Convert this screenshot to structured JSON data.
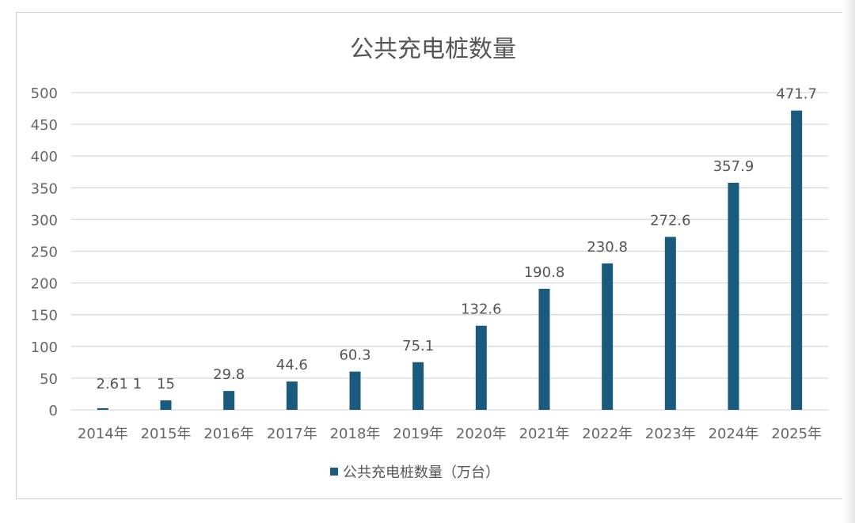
{
  "chart_data": {
    "type": "bar",
    "title": "公共充电桩数量",
    "categories": [
      "2014年",
      "2015年",
      "2016年",
      "2017年",
      "2018年",
      "2019年",
      "2020年",
      "2021年",
      "2022年",
      "2023年",
      "2024年",
      "2025年"
    ],
    "series": [
      {
        "name": "公共充电桩数量（万台）",
        "values": [
          2.6,
          15,
          29.8,
          44.6,
          60.3,
          75.1,
          132.6,
          190.8,
          230.8,
          272.6,
          357.9,
          471.7
        ],
        "labels": [
          "2.6",
          "15",
          "29.8",
          "44.6",
          "60.3",
          "75.1",
          "132.6",
          "190.8",
          "230.8",
          "272.6",
          "357.9",
          "471.7"
        ]
      }
    ],
    "extra_label": "1 1",
    "ylim": [
      0,
      500
    ],
    "yticks": [
      0,
      50,
      100,
      150,
      200,
      250,
      300,
      350,
      400,
      450,
      500
    ],
    "grid": true,
    "legend_position": "bottom",
    "bar_color": "#1a5b7d",
    "grid_color": "#d9d9d9"
  }
}
